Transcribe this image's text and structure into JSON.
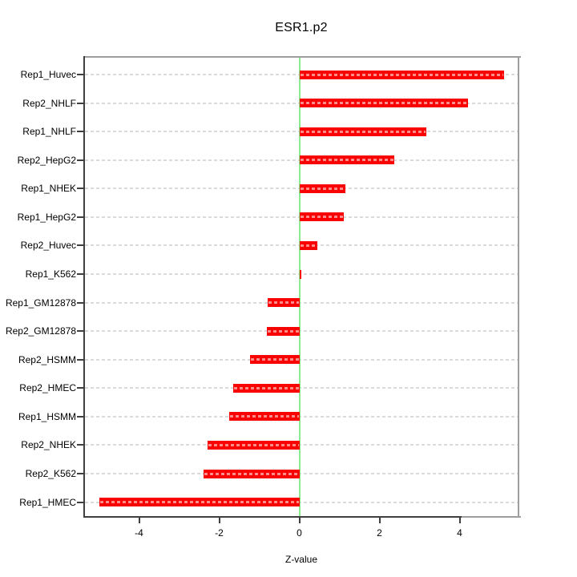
{
  "chart_data": {
    "type": "bar",
    "orientation": "horizontal",
    "title": "ESR1.p2",
    "xlabel": "Z-value",
    "ylabel": "",
    "grid": "dashed-horizontal",
    "legend": "none",
    "xlim": [
      -5.39,
      5.49
    ],
    "xticks": [
      -4,
      -2,
      0,
      2,
      4
    ],
    "zero_reference_line": 0,
    "categories": [
      "Rep1_Huvec",
      "Rep2_NHLF",
      "Rep1_NHLF",
      "Rep2_HepG2",
      "Rep1_NHEK",
      "Rep1_HepG2",
      "Rep2_Huvec",
      "Rep1_K562",
      "Rep1_GM12878",
      "Rep2_GM12878",
      "Rep2_HSMM",
      "Rep2_HMEC",
      "Rep1_HSMM",
      "Rep2_NHEK",
      "Rep2_K562",
      "Rep1_HMEC"
    ],
    "values": [
      5.1,
      4.21,
      3.17,
      2.37,
      1.15,
      1.11,
      0.45,
      0.05,
      -0.79,
      -0.82,
      -1.23,
      -1.65,
      -1.76,
      -2.29,
      -2.4,
      -5.0
    ],
    "colors": {
      "bar": "#fb0000",
      "bar_inner_dash": "#ffb3b3",
      "zero_line": "#8dec8d",
      "gridline": "#dadada",
      "axis_dark": "#3f3f3f",
      "box_gray": "#9e9e9e",
      "background": "#ffffff",
      "text": "#000000"
    }
  }
}
